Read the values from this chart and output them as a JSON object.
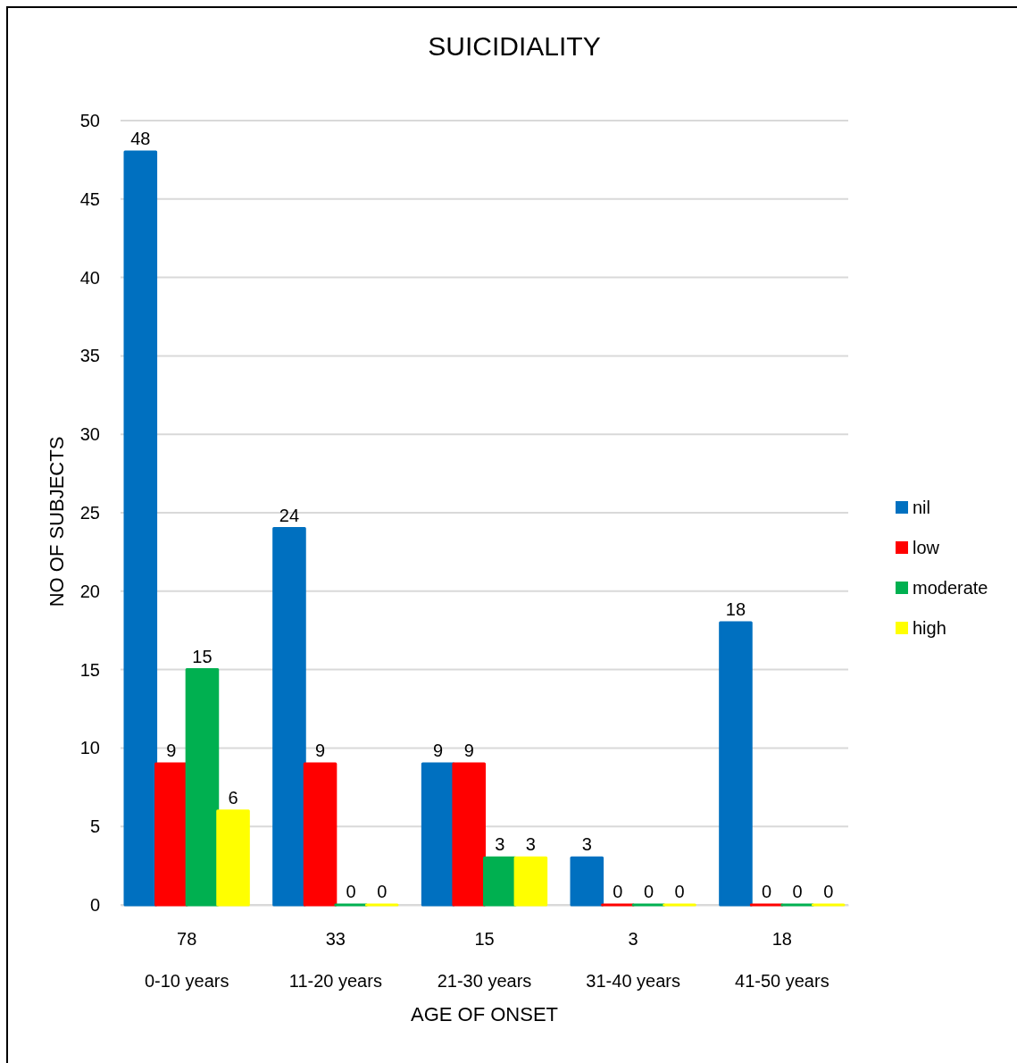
{
  "chart_data": {
    "type": "bar",
    "title": "SUICIDIALITY",
    "xlabel": "AGE OF ONSET",
    "ylabel": "NO OF SUBJECTS",
    "categories": [
      "0-10 years",
      "11-20 years",
      "21-30 years",
      "31-40 years",
      "41-50 years"
    ],
    "series": [
      {
        "name": "nil",
        "color": "#0070c0",
        "values": [
          48,
          24,
          9,
          3,
          18
        ]
      },
      {
        "name": "low",
        "color": "#ff0000",
        "values": [
          9,
          9,
          9,
          0,
          0
        ]
      },
      {
        "name": "moderate",
        "color": "#00b050",
        "values": [
          15,
          0,
          3,
          0,
          0
        ]
      },
      {
        "name": "high",
        "color": "#ffff00",
        "values": [
          6,
          0,
          3,
          0,
          0
        ]
      }
    ],
    "annotations": [
      "78",
      "33",
      "15",
      "3",
      "18"
    ],
    "ylim": [
      0,
      50
    ],
    "yticks": [
      0,
      5,
      10,
      15,
      20,
      25,
      30,
      35,
      40,
      45,
      50
    ],
    "grid": "y",
    "legend": "right",
    "data_labels": true
  }
}
